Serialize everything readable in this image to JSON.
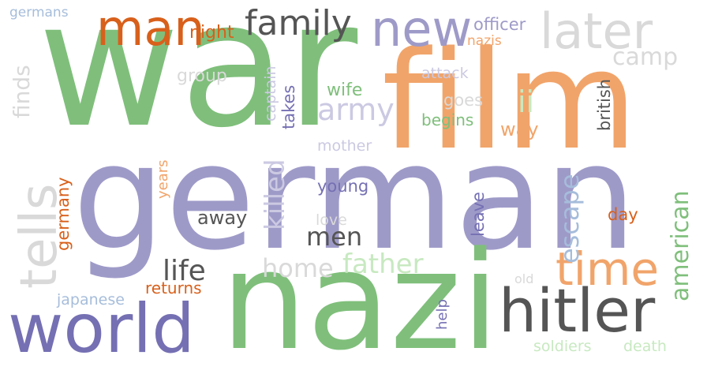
{
  "colors": {
    "green": "#7fbf7b",
    "orange_light": "#f1a46a",
    "lavender": "#9e9ac8",
    "purple_dark": "#7570b3",
    "orange_dark": "#d8601b",
    "gray_dark": "#555555",
    "gray_light": "#d9d9d9",
    "lavender_light": "#cbc9e2",
    "green_light": "#c7e9c0",
    "blue_light": "#a6bddb",
    "background": "#ffffff"
  },
  "words": [
    {
      "key": "war",
      "text": "war",
      "color": "#7fbf7b"
    },
    {
      "key": "film",
      "text": "film",
      "color": "#f1a46a"
    },
    {
      "key": "german",
      "text": "german",
      "color": "#9e9ac8"
    },
    {
      "key": "nazi",
      "text": "nazi",
      "color": "#7fbf7b"
    },
    {
      "key": "world",
      "text": "world",
      "color": "#7570b3"
    },
    {
      "key": "hitler",
      "text": "hitler",
      "color": "#555555"
    },
    {
      "key": "man",
      "text": "man",
      "color": "#d8601b"
    },
    {
      "key": "new",
      "text": "new",
      "color": "#9e9ac8"
    },
    {
      "key": "later",
      "text": "later",
      "color": "#d9d9d9"
    },
    {
      "key": "family",
      "text": "family",
      "color": "#555555"
    },
    {
      "key": "time",
      "text": "time",
      "color": "#f1a46a"
    },
    {
      "key": "tells",
      "text": "tells",
      "color": "#d9d9d9"
    },
    {
      "key": "finds",
      "text": "finds",
      "color": "#d9d9d9"
    },
    {
      "key": "germans",
      "text": "germans",
      "color": "#a6bddb"
    },
    {
      "key": "night",
      "text": "night",
      "color": "#d8601b"
    },
    {
      "key": "officer",
      "text": "officer",
      "color": "#9e9ac8"
    },
    {
      "key": "nazis",
      "text": "nazis",
      "color": "#f1a46a"
    },
    {
      "key": "camp",
      "text": "camp",
      "color": "#d9d9d9"
    },
    {
      "key": "group",
      "text": "group",
      "color": "#d9d9d9"
    },
    {
      "key": "captain",
      "text": "captain",
      "color": "#cbc9e2"
    },
    {
      "key": "attack",
      "text": "attack",
      "color": "#cbc9e2"
    },
    {
      "key": "wife",
      "text": "wife",
      "color": "#7fbf7b"
    },
    {
      "key": "ii",
      "text": "ii",
      "color": "#c7e9c0"
    },
    {
      "key": "british",
      "text": "british",
      "color": "#555555"
    },
    {
      "key": "takes",
      "text": "takes",
      "color": "#7570b3"
    },
    {
      "key": "army",
      "text": "army",
      "color": "#cbc9e2"
    },
    {
      "key": "goes",
      "text": "goes",
      "color": "#d9d9d9"
    },
    {
      "key": "begins",
      "text": "begins",
      "color": "#7fbf7b"
    },
    {
      "key": "way",
      "text": "way",
      "color": "#f1a46a"
    },
    {
      "key": "killed",
      "text": "killed",
      "color": "#cbc9e2"
    },
    {
      "key": "mother",
      "text": "mother",
      "color": "#cbc9e2"
    },
    {
      "key": "germany",
      "text": "germany",
      "color": "#d8601b"
    },
    {
      "key": "years",
      "text": "years",
      "color": "#f1a46a"
    },
    {
      "key": "young",
      "text": "young",
      "color": "#7570b3"
    },
    {
      "key": "escape",
      "text": "escape",
      "color": "#a6bddb"
    },
    {
      "key": "american",
      "text": "american",
      "color": "#7fbf7b"
    },
    {
      "key": "leave",
      "text": "leave",
      "color": "#7570b3"
    },
    {
      "key": "day",
      "text": "day",
      "color": "#d8601b"
    },
    {
      "key": "away",
      "text": "away",
      "color": "#555555"
    },
    {
      "key": "love",
      "text": "love",
      "color": "#d9d9d9"
    },
    {
      "key": "men",
      "text": "men",
      "color": "#555555"
    },
    {
      "key": "life",
      "text": "life",
      "color": "#555555"
    },
    {
      "key": "home",
      "text": "home",
      "color": "#d9d9d9"
    },
    {
      "key": "father",
      "text": "father",
      "color": "#c7e9c0"
    },
    {
      "key": "old",
      "text": "old",
      "color": "#d9d9d9"
    },
    {
      "key": "returns",
      "text": "returns",
      "color": "#d8601b"
    },
    {
      "key": "japanese",
      "text": "japanese",
      "color": "#a6bddb"
    },
    {
      "key": "help",
      "text": "help",
      "color": "#7570b3"
    },
    {
      "key": "soldiers",
      "text": "soldiers",
      "color": "#c7e9c0"
    },
    {
      "key": "death",
      "text": "death",
      "color": "#c7e9c0"
    }
  ]
}
